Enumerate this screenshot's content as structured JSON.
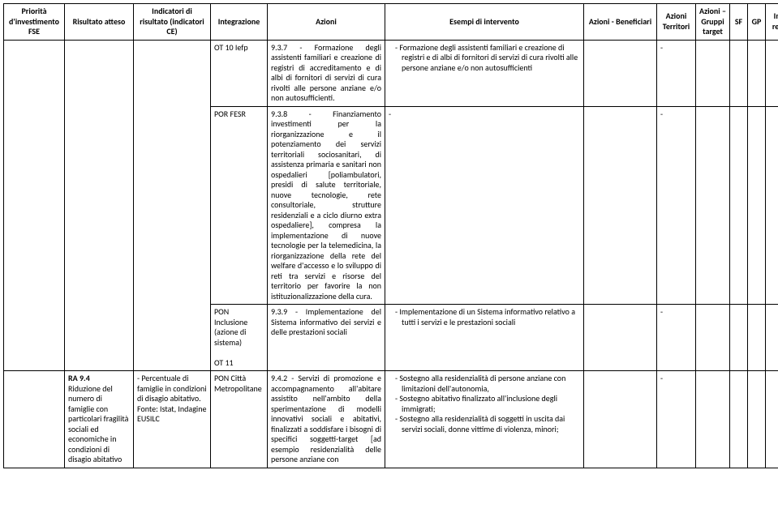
{
  "headers": {
    "priorita": "Priorità d'investimento FSE",
    "risultato_atteso": "Risultato atteso",
    "indicatori_ce": "Indicatori di risultato (indicatori CE)",
    "integrazione": "Integrazione",
    "azioni": "Azioni",
    "esempi": "Esempi di intervento",
    "beneficiari": "Azioni - Beneficiari",
    "territori": "Azioni Territori",
    "gruppi_target": "Azioni – Gruppi target",
    "sf": "SF",
    "gp": "GP",
    "indicatori_real": "Indicatori di realizzazione"
  },
  "rows": [
    {
      "integrazione": "OT 10 Iefp",
      "azioni": "9.3.7 - Formazione degli assistenti familiari e creazione di registri di accreditamento e di albi di fornitori di servizi di cura rivolti alle persone anziane e/o non autosufficienti.",
      "esempi": "Formazione degli assistenti familiari e creazione di registri e di albi di fornitori di servizi di cura rivolti alle persone anziane e/o non autosufficienti",
      "territori": "-"
    },
    {
      "integrazione": "POR FESR",
      "azioni": "9.3.8 - Finanziamento investimenti per la riorganizzazione e il potenziamento dei servizi territoriali sociosanitari, di assistenza primaria e sanitari non ospedalieri [poliambulatori, presidi di salute territoriale, nuove tecnologie, rete consultoriale, strutture residenziali e a ciclo diurno extra ospedaliere], compresa la implementazione di nuove tecnologie per la telemedicina, la riorganizzazione della rete del welfare d'accesso e lo sviluppo di reti tra servizi e risorse del territorio per favorire la non istituzionalizzazione della cura.",
      "esempi": "-",
      "territori": "-"
    },
    {
      "integrazione_a": "PON Inclusione (azione di sistema)",
      "integrazione_b": "OT 11",
      "azioni": "9.3.9 - Implementazione del Sistema informativo dei servizi e delle prestazioni sociali",
      "esempi": "Implementazione di un Sistema informativo relativo a tutti i servizi e le prestazioni sociali",
      "territori": "-"
    },
    {
      "priorita_ra": "RA 9.4",
      "priorita_desc": "Riduzione del numero di famiglie con particolari fragilità sociali ed economiche in condizioni di disagio abitativo",
      "indicatori_ce_a": "- Percentuale di famiglie in condizioni di disagio abitativo.",
      "indicatori_ce_b": "Fonte: Istat, Indagine EUSILC",
      "integrazione": "PON Città Metropolitane",
      "azioni": "9.4.2 - Servizi di promozione e accompagnamento all'abitare assistito nell'ambito della sperimentazione di modelli innovativi sociali e abitativi, finalizzati a soddisfare i bisogni di specifici soggetti-target [ad esempio residenzialità delle persone anziane con",
      "esempi": [
        "Sostegno alla residenzialità di persone anziane con limitazioni dell'autonomia,",
        "Sostegno abitativo finalizzato all'inclusione degli immigrati;",
        "Sostegno alla residenzialità di soggetti in uscita dai servizi sociali, donne vittime di violenza, minori;"
      ],
      "territori": "-"
    }
  ]
}
